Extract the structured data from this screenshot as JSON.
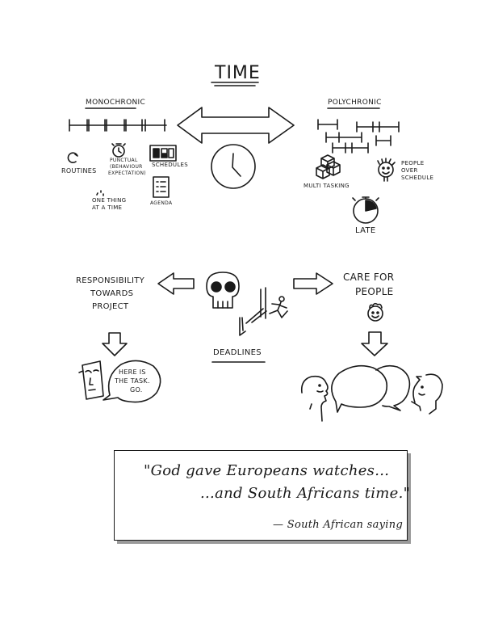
{
  "title": "TIME",
  "monochronic": {
    "heading": "MONOCHRONIC",
    "items": {
      "routines": "ROUTINES",
      "punctual": [
        "PUNCTUAL",
        "(BEHAVIOUR",
        "EXPECTATION)"
      ],
      "schedules": "SCHEDULES",
      "one_thing": [
        "ONE THING",
        "AT A TIME"
      ],
      "agenda": "AGENDA"
    }
  },
  "polychronic": {
    "heading": "POLYCHRONIC",
    "items": {
      "multitasking": "MULTI TASKING",
      "people_over_schedule": [
        "PEOPLE",
        "OVER",
        "SCHEDULE"
      ],
      "late": "LATE"
    }
  },
  "center": {
    "responsibility": [
      "RESPONSIBILITY",
      "TOWARDS",
      "PROJECT"
    ],
    "deadlines": "DEADLINES",
    "care": [
      "CARE FOR",
      "PEOPLE"
    ],
    "speech": [
      "HERE IS",
      "THE TASK.",
      "GO."
    ]
  },
  "quote": {
    "line1": "\"God gave Europeans watches...",
    "line2": "...and South Africans time.\"",
    "attribution": "— South African saying"
  }
}
